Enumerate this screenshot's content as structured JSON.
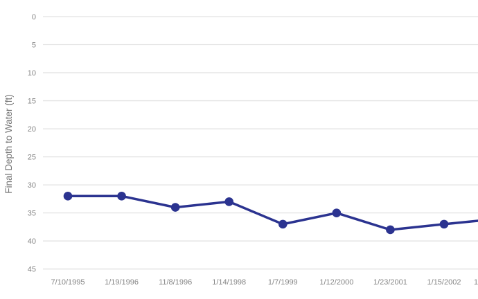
{
  "page": {
    "background_color": "#ffffff"
  },
  "chart_data": {
    "type": "line",
    "title": "",
    "xlabel": "",
    "ylabel": "Final Depth to Water (ft)",
    "categories": [
      "7/10/1995",
      "1/19/1996",
      "11/8/1996",
      "1/14/1998",
      "1/7/1999",
      "1/12/2000",
      "1/23/2001",
      "1/15/2002"
    ],
    "series": [
      {
        "name": "Final Depth to Water",
        "values": [
          32,
          32,
          34,
          33,
          37,
          35,
          38,
          37
        ]
      }
    ],
    "y_ticks": [
      0,
      5,
      10,
      15,
      20,
      25,
      30,
      35,
      40,
      45
    ],
    "ylim": [
      0,
      45
    ],
    "y_axis_direction": "depth-downward (0 at top, 45 at bottom)",
    "grid": "horizontal-only",
    "legend_position": "none",
    "line_continues_past_right_edge": true,
    "value_at_right_clip_edge": 36.4,
    "partial_next_x_label_fragment": "1",
    "colors": {
      "line": "#2b3390",
      "marker": "#2b3390",
      "gridline": "#e2e2e2",
      "tick_label": "#848484",
      "axis_title": "#757575",
      "background": "#ffffff"
    }
  }
}
